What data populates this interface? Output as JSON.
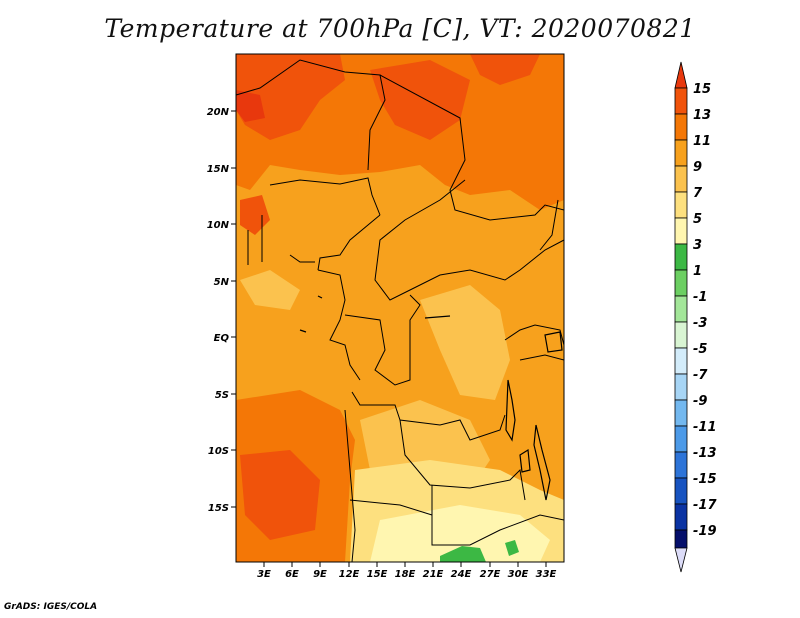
{
  "title": "Temperature at 700hPa [C], VT: 2020070821",
  "credit": "GrADS: IGES/COLA",
  "map": {
    "lon_ticks": [
      "3E",
      "6E",
      "9E",
      "12E",
      "15E",
      "18E",
      "21E",
      "24E",
      "27E",
      "30E",
      "33E"
    ],
    "lat_ticks": [
      "20N",
      "15N",
      "10N",
      "5N",
      "EQ",
      "5S",
      "10S",
      "15S"
    ]
  },
  "colorbar": {
    "labels": [
      "15",
      "13",
      "11",
      "9",
      "7",
      "5",
      "3",
      "1",
      "-1",
      "-3",
      "-5",
      "-7",
      "-9",
      "-11",
      "-13",
      "-15",
      "-17",
      "-19"
    ],
    "colors": [
      "#e8380d",
      "#f0530b",
      "#f47706",
      "#f7a11d",
      "#fbc24e",
      "#fde07f",
      "#fff6b0",
      "#3cb844",
      "#6ccf62",
      "#a3e699",
      "#d9f5d3",
      "#d3ecfa",
      "#a7d5f5",
      "#73b8ef",
      "#4c9ae8",
      "#2d74d8",
      "#1753c0",
      "#0a33a3",
      "#050f6b"
    ],
    "under_color": "#dcdcf8"
  }
}
